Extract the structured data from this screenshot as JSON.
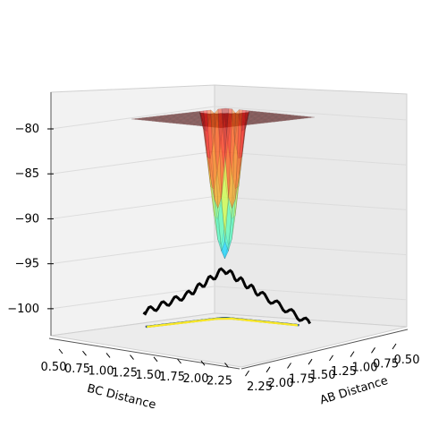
{
  "chart_data": {
    "type": "surface3d",
    "title": "",
    "xlabel": "AB Distance",
    "ylabel": "BC Distance",
    "zlabel": "",
    "x_ticks": [
      "0.50",
      "0.75",
      "1.00",
      "1.25",
      "1.50",
      "1.75",
      "2.00",
      "2.25"
    ],
    "y_ticks": [
      "0.50",
      "0.75",
      "1.00",
      "1.25",
      "1.50",
      "1.75",
      "2.00",
      "2.25"
    ],
    "z_ticks": [
      "−80",
      "−85",
      "−90",
      "−95",
      "−100"
    ],
    "z_tick_values": [
      -80,
      -85,
      -90,
      -95,
      -100
    ],
    "xlim": [
      0.5,
      2.4
    ],
    "ylim": [
      0.5,
      2.4
    ],
    "zlim": [
      -103,
      -80
    ],
    "colormap": "jet",
    "surface_opacity": 0.45,
    "grid": true,
    "trajectory": {
      "color": "#000000",
      "description_points": [
        {
          "AB": 2.3,
          "BC": 0.5,
          "E": -103.0
        },
        {
          "AB": 1.5,
          "BC": 0.74,
          "E": -100.0
        },
        {
          "AB": 0.95,
          "BC": 0.95,
          "E": -97.4
        },
        {
          "AB": 0.74,
          "BC": 1.5,
          "E": -100.0
        },
        {
          "AB": 0.65,
          "BC": 2.3,
          "E": -101.5
        }
      ]
    },
    "contour_colors": [
      "#440154",
      "#31688e",
      "#35b779",
      "#fde725"
    ]
  }
}
